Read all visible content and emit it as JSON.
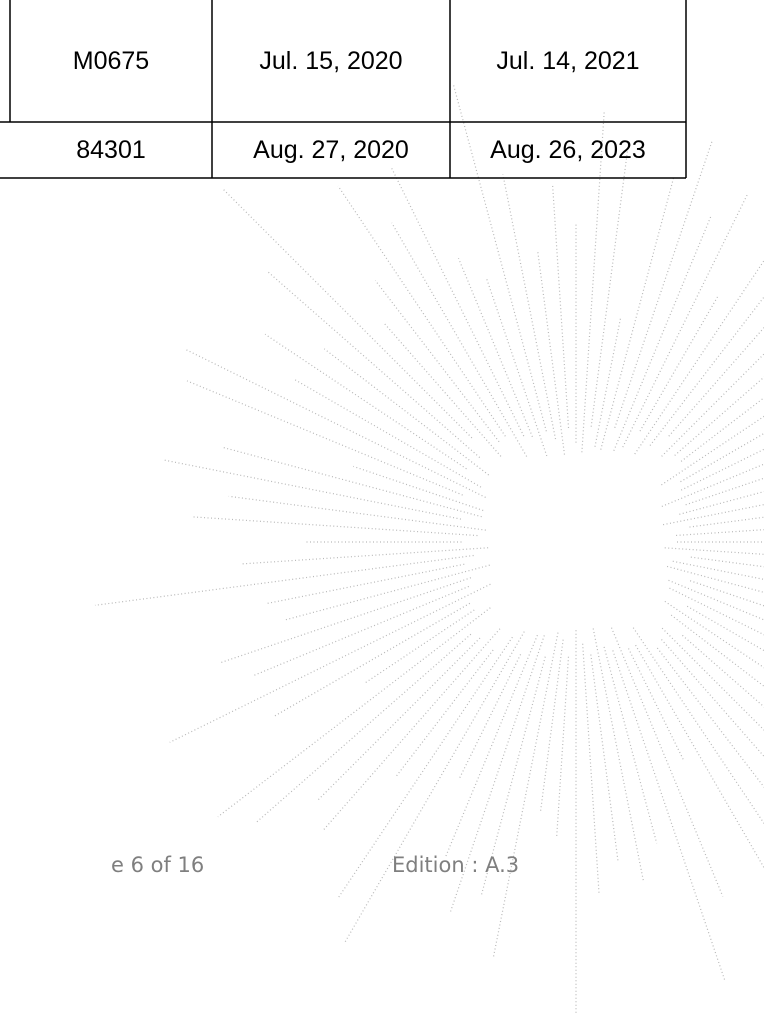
{
  "table": {
    "rows": [
      [
        "M0675",
        "Jul. 15, 2020",
        "Jul. 14, 2021"
      ],
      [
        "84301",
        "Aug. 27, 2020",
        "Aug. 26, 2023"
      ]
    ]
  },
  "footer": {
    "page": "e 6 of 16",
    "edition": "Edition : A.3"
  }
}
